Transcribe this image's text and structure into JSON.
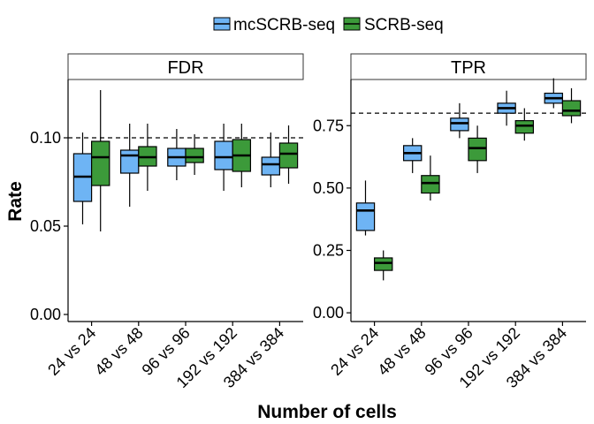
{
  "chart_data": {
    "type": "boxplot",
    "legend": {
      "position": "top",
      "entries": [
        {
          "name": "mcSCRB-seq",
          "color": "#6EB4F4"
        },
        {
          "name": "SCRB-seq",
          "color": "#3C9A3A"
        }
      ]
    },
    "categories": [
      "24 vs 24",
      "48 vs 48",
      "96 vs 96",
      "192 vs 192",
      "384 vs 384"
    ],
    "xlabel": "Number of cells",
    "ylabel": "Rate",
    "panels": [
      {
        "title": "FDR",
        "ylim": [
          -0.004,
          0.133
        ],
        "yticks": [
          0.0,
          0.05,
          0.1
        ],
        "ytick_labels": [
          "0.00",
          "0.05",
          "0.10"
        ],
        "reference_line": 0.1,
        "series": [
          {
            "name": "mcSCRB-seq",
            "boxes": [
              {
                "lo": 0.051,
                "q1": 0.064,
                "med": 0.078,
                "q3": 0.091,
                "hi": 0.103
              },
              {
                "lo": 0.061,
                "q1": 0.08,
                "med": 0.09,
                "q3": 0.093,
                "hi": 0.108
              },
              {
                "lo": 0.076,
                "q1": 0.084,
                "med": 0.089,
                "q3": 0.094,
                "hi": 0.105
              },
              {
                "lo": 0.07,
                "q1": 0.082,
                "med": 0.089,
                "q3": 0.098,
                "hi": 0.108
              },
              {
                "lo": 0.072,
                "q1": 0.079,
                "med": 0.085,
                "q3": 0.089,
                "hi": 0.103
              }
            ]
          },
          {
            "name": "SCRB-seq",
            "boxes": [
              {
                "lo": 0.047,
                "q1": 0.073,
                "med": 0.089,
                "q3": 0.098,
                "hi": 0.127
              },
              {
                "lo": 0.07,
                "q1": 0.084,
                "med": 0.089,
                "q3": 0.095,
                "hi": 0.108
              },
              {
                "lo": 0.079,
                "q1": 0.086,
                "med": 0.089,
                "q3": 0.094,
                "hi": 0.102
              },
              {
                "lo": 0.072,
                "q1": 0.081,
                "med": 0.09,
                "q3": 0.099,
                "hi": 0.108
              },
              {
                "lo": 0.074,
                "q1": 0.083,
                "med": 0.091,
                "q3": 0.097,
                "hi": 0.107
              }
            ]
          }
        ]
      },
      {
        "title": "TPR",
        "ylim": [
          -0.035,
          0.935
        ],
        "yticks": [
          0.0,
          0.25,
          0.5,
          0.75
        ],
        "ytick_labels": [
          "0.00",
          "0.25",
          "0.50",
          "0.75"
        ],
        "reference_line": 0.8,
        "series": [
          {
            "name": "mcSCRB-seq",
            "boxes": [
              {
                "lo": 0.31,
                "q1": 0.33,
                "med": 0.41,
                "q3": 0.44,
                "hi": 0.53
              },
              {
                "lo": 0.56,
                "q1": 0.61,
                "med": 0.64,
                "q3": 0.67,
                "hi": 0.7
              },
              {
                "lo": 0.7,
                "q1": 0.73,
                "med": 0.76,
                "q3": 0.78,
                "hi": 0.84
              },
              {
                "lo": 0.75,
                "q1": 0.8,
                "med": 0.82,
                "q3": 0.84,
                "hi": 0.89
              },
              {
                "lo": 0.82,
                "q1": 0.84,
                "med": 0.86,
                "q3": 0.88,
                "hi": 0.94
              }
            ]
          },
          {
            "name": "SCRB-seq",
            "boxes": [
              {
                "lo": 0.13,
                "q1": 0.17,
                "med": 0.2,
                "q3": 0.22,
                "hi": 0.25
              },
              {
                "lo": 0.45,
                "q1": 0.48,
                "med": 0.52,
                "q3": 0.55,
                "hi": 0.63
              },
              {
                "lo": 0.56,
                "q1": 0.61,
                "med": 0.66,
                "q3": 0.7,
                "hi": 0.75
              },
              {
                "lo": 0.69,
                "q1": 0.72,
                "med": 0.75,
                "q3": 0.77,
                "hi": 0.82
              },
              {
                "lo": 0.76,
                "q1": 0.79,
                "med": 0.81,
                "q3": 0.85,
                "hi": 0.9
              }
            ]
          }
        ]
      }
    ]
  }
}
